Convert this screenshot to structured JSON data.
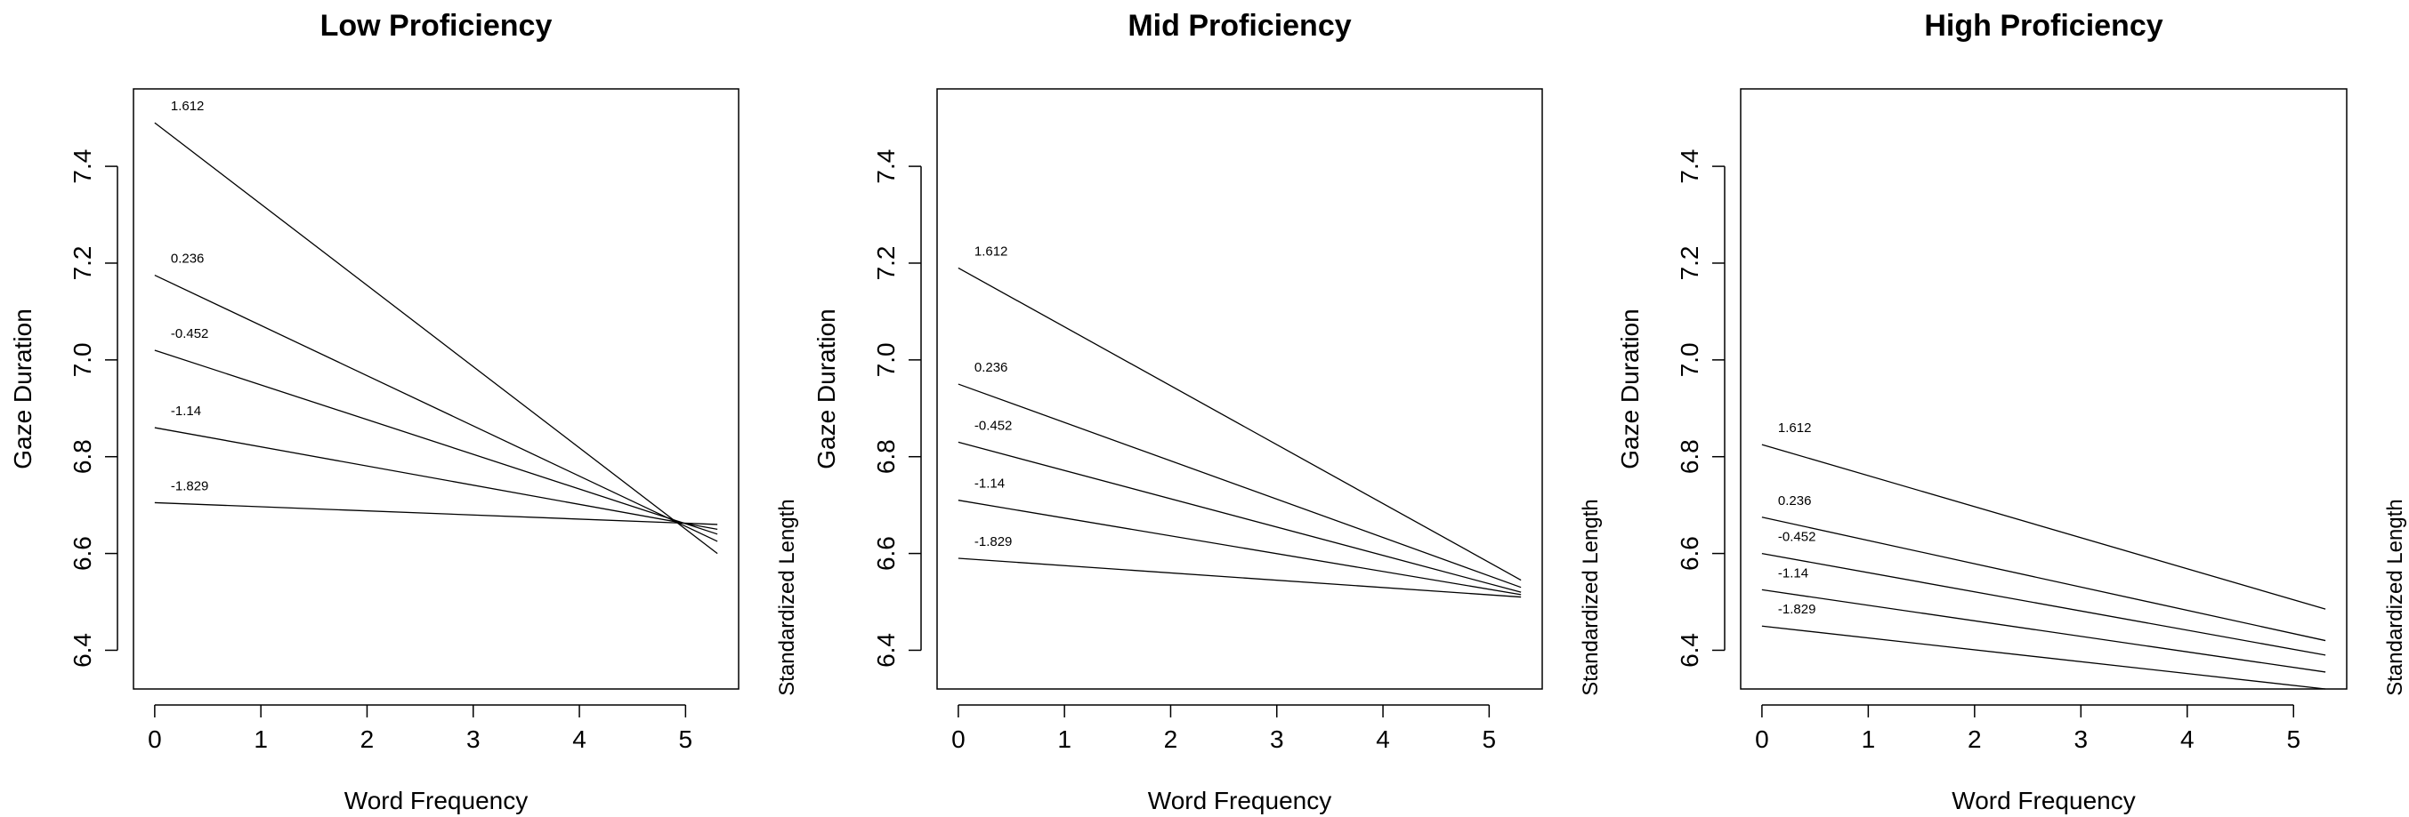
{
  "chart_data": [
    {
      "type": "line",
      "title": "Low Proficiency",
      "xlabel": "Word Frequency",
      "ylabel": "Gaze Duration",
      "side_label": "Standardized Length",
      "xlim": [
        -0.2,
        5.5
      ],
      "ylim": [
        6.32,
        7.56
      ],
      "xticks": [
        "0",
        "1",
        "2",
        "3",
        "4",
        "5"
      ],
      "yticks": [
        "6.4",
        "6.6",
        "6.8",
        "7.0",
        "7.2",
        "7.4"
      ],
      "series": [
        {
          "name": "1.612",
          "x": [
            0,
            5.3
          ],
          "y": [
            7.49,
            6.6
          ]
        },
        {
          "name": "0.236",
          "x": [
            0,
            5.3
          ],
          "y": [
            7.175,
            6.625
          ]
        },
        {
          "name": "-0.452",
          "x": [
            0,
            5.3
          ],
          "y": [
            7.02,
            6.64
          ]
        },
        {
          "name": "-1.14",
          "x": [
            0,
            5.3
          ],
          "y": [
            6.86,
            6.65
          ]
        },
        {
          "name": "-1.829",
          "x": [
            0,
            5.3
          ],
          "y": [
            6.705,
            6.66
          ]
        }
      ]
    },
    {
      "type": "line",
      "title": "Mid Proficiency",
      "xlabel": "Word Frequency",
      "ylabel": "Gaze Duration",
      "side_label": "Standardized Length",
      "xlim": [
        -0.2,
        5.5
      ],
      "ylim": [
        6.32,
        7.56
      ],
      "xticks": [
        "0",
        "1",
        "2",
        "3",
        "4",
        "5"
      ],
      "yticks": [
        "6.4",
        "6.6",
        "6.8",
        "7.0",
        "7.2",
        "7.4"
      ],
      "series": [
        {
          "name": "1.612",
          "x": [
            0,
            5.3
          ],
          "y": [
            7.19,
            6.545
          ]
        },
        {
          "name": "0.236",
          "x": [
            0,
            5.3
          ],
          "y": [
            6.95,
            6.53
          ]
        },
        {
          "name": "-0.452",
          "x": [
            0,
            5.3
          ],
          "y": [
            6.83,
            6.52
          ]
        },
        {
          "name": "-1.14",
          "x": [
            0,
            5.3
          ],
          "y": [
            6.71,
            6.515
          ]
        },
        {
          "name": "-1.829",
          "x": [
            0,
            5.3
          ],
          "y": [
            6.59,
            6.51
          ]
        }
      ]
    },
    {
      "type": "line",
      "title": "High Proficiency",
      "xlabel": "Word Frequency",
      "ylabel": "Gaze Duration",
      "side_label": "Standardized Length",
      "xlim": [
        -0.2,
        5.5
      ],
      "ylim": [
        6.32,
        7.56
      ],
      "xticks": [
        "0",
        "1",
        "2",
        "3",
        "4",
        "5"
      ],
      "yticks": [
        "6.4",
        "6.6",
        "6.8",
        "7.0",
        "7.2",
        "7.4"
      ],
      "series": [
        {
          "name": "1.612",
          "x": [
            0,
            5.3
          ],
          "y": [
            6.825,
            6.485
          ]
        },
        {
          "name": "0.236",
          "x": [
            0,
            5.3
          ],
          "y": [
            6.675,
            6.42
          ]
        },
        {
          "name": "-0.452",
          "x": [
            0,
            5.3
          ],
          "y": [
            6.6,
            6.39
          ]
        },
        {
          "name": "-1.14",
          "x": [
            0,
            5.3
          ],
          "y": [
            6.525,
            6.355
          ]
        },
        {
          "name": "-1.829",
          "x": [
            0,
            5.3
          ],
          "y": [
            6.45,
            6.32
          ]
        }
      ]
    }
  ]
}
